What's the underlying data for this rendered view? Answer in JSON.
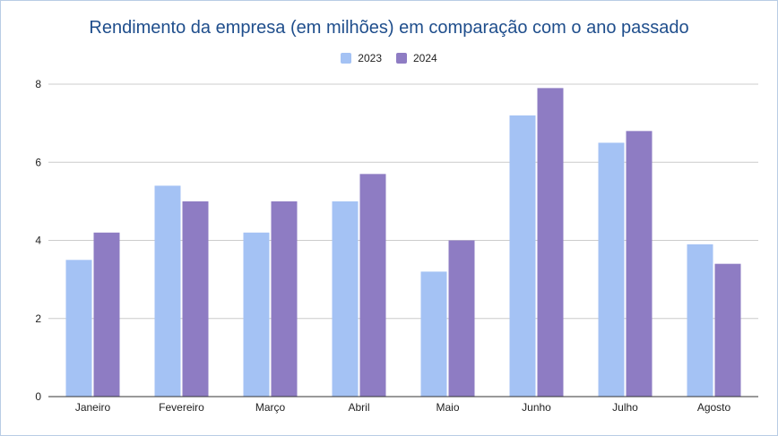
{
  "chart_data": {
    "type": "bar",
    "title": "Rendimento da empresa (em milhões) em comparação com o ano passado",
    "categories": [
      "Janeiro",
      "Fevereiro",
      "Março",
      "Abril",
      "Maio",
      "Junho",
      "Julho",
      "Agosto"
    ],
    "series": [
      {
        "name": "2023",
        "color": "#a4c2f4",
        "values": [
          3.5,
          5.4,
          4.2,
          5.0,
          3.2,
          7.2,
          6.5,
          3.9
        ]
      },
      {
        "name": "2024",
        "color": "#8e7cc3",
        "values": [
          4.2,
          5.0,
          5.0,
          5.7,
          4.0,
          7.9,
          6.8,
          3.4
        ]
      }
    ],
    "ylim": [
      0,
      8
    ],
    "yticks": [
      "0",
      "2",
      "4",
      "6",
      "8"
    ],
    "grid": true,
    "legend_position": "top-center",
    "xlabel": "",
    "ylabel": ""
  }
}
